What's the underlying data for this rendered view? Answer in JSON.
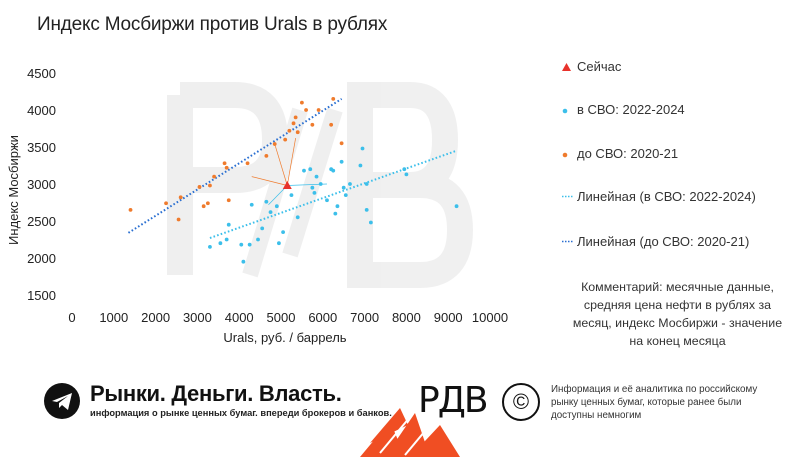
{
  "title": "Индекс Мосбиржи против Urals в рублях",
  "chart_data": {
    "type": "scatter",
    "xlabel": "Urals, руб. / баррель",
    "ylabel": "Индекс Мосбиржи",
    "xlim": [
      0,
      10000
    ],
    "ylim": [
      1500,
      4500
    ],
    "xticks": [
      0,
      1000,
      2000,
      3000,
      4000,
      5000,
      6000,
      7000,
      8000,
      9000,
      10000
    ],
    "yticks": [
      1500,
      2000,
      2500,
      3000,
      3500,
      4000,
      4500
    ],
    "grid": false,
    "legend_position": "right",
    "colors": {
      "now": "#e8322b",
      "svo": "#3cbfea",
      "pre": "#ef7b2d"
    },
    "series": [
      {
        "name": "Сейчас",
        "marker": "triangle",
        "points": [
          [
            5150,
            2980
          ]
        ]
      },
      {
        "name": "в СВО: 2022-2024",
        "marker": "circle",
        "points": [
          [
            3300,
            2150
          ],
          [
            3550,
            2200
          ],
          [
            3750,
            2450
          ],
          [
            3700,
            2250
          ],
          [
            4050,
            2180
          ],
          [
            4100,
            1950
          ],
          [
            4250,
            2180
          ],
          [
            4300,
            2720
          ],
          [
            4450,
            2250
          ],
          [
            4550,
            2400
          ],
          [
            4650,
            2760
          ],
          [
            4750,
            2620
          ],
          [
            4900,
            2700
          ],
          [
            4950,
            2200
          ],
          [
            5050,
            2350
          ],
          [
            5250,
            2850
          ],
          [
            5400,
            2550
          ],
          [
            5550,
            3180
          ],
          [
            5700,
            3200
          ],
          [
            5750,
            2950
          ],
          [
            5800,
            2880
          ],
          [
            5850,
            3100
          ],
          [
            5950,
            3000
          ],
          [
            6100,
            2780
          ],
          [
            6200,
            3200
          ],
          [
            6250,
            3180
          ],
          [
            6300,
            2600
          ],
          [
            6350,
            2700
          ],
          [
            6450,
            3300
          ],
          [
            6500,
            2950
          ],
          [
            6550,
            2850
          ],
          [
            6650,
            3000
          ],
          [
            6900,
            3250
          ],
          [
            6950,
            3480
          ],
          [
            7050,
            3000
          ],
          [
            7050,
            2650
          ],
          [
            7150,
            2480
          ],
          [
            7950,
            3200
          ],
          [
            8000,
            3130
          ],
          [
            9200,
            2700
          ]
        ]
      },
      {
        "name": "до СВО: 2020-21",
        "marker": "circle",
        "points": [
          [
            1400,
            2650
          ],
          [
            2250,
            2740
          ],
          [
            2550,
            2520
          ],
          [
            2600,
            2820
          ],
          [
            3050,
            2960
          ],
          [
            3150,
            2700
          ],
          [
            3250,
            2740
          ],
          [
            3300,
            2980
          ],
          [
            3400,
            3100
          ],
          [
            3650,
            3280
          ],
          [
            3700,
            3220
          ],
          [
            3750,
            2780
          ],
          [
            4200,
            3280
          ],
          [
            4650,
            3380
          ],
          [
            4850,
            3540
          ],
          [
            5100,
            3600
          ],
          [
            5200,
            3720
          ],
          [
            5300,
            3820
          ],
          [
            5350,
            3900
          ],
          [
            5400,
            3700
          ],
          [
            5500,
            4100
          ],
          [
            5600,
            4000
          ],
          [
            5750,
            3800
          ],
          [
            5900,
            4000
          ],
          [
            6200,
            3800
          ],
          [
            6250,
            4150
          ],
          [
            6450,
            3550
          ]
        ]
      }
    ],
    "trendlines": [
      {
        "name": "Линейная (в СВО: 2022-2024)",
        "from": [
          3300,
          2270
        ],
        "to": [
          9200,
          3450
        ],
        "color": "#3cbfea"
      },
      {
        "name": "Линейная (до СВО: 2020-21)",
        "from": [
          1350,
          2340
        ],
        "to": [
          6450,
          4150
        ],
        "color": "#2a6fd1"
      }
    ]
  },
  "comment": "Комментарий: месячные данные, средняя цена нефти в рублях за месяц, индекс Мосбиржи - значение на конец месяца",
  "footer": {
    "brand": "Рынки. Деньги. Власть.",
    "tagline": "информация о рынке ценных бумаг. впереди брокеров и банков.",
    "logo_text": "РДВ",
    "copyright_symbol": "©",
    "note": "Информация и её аналитика по российскому рынку ценных бумаг, которые ранее были доступны немногим",
    "icon": "telegram-icon"
  }
}
